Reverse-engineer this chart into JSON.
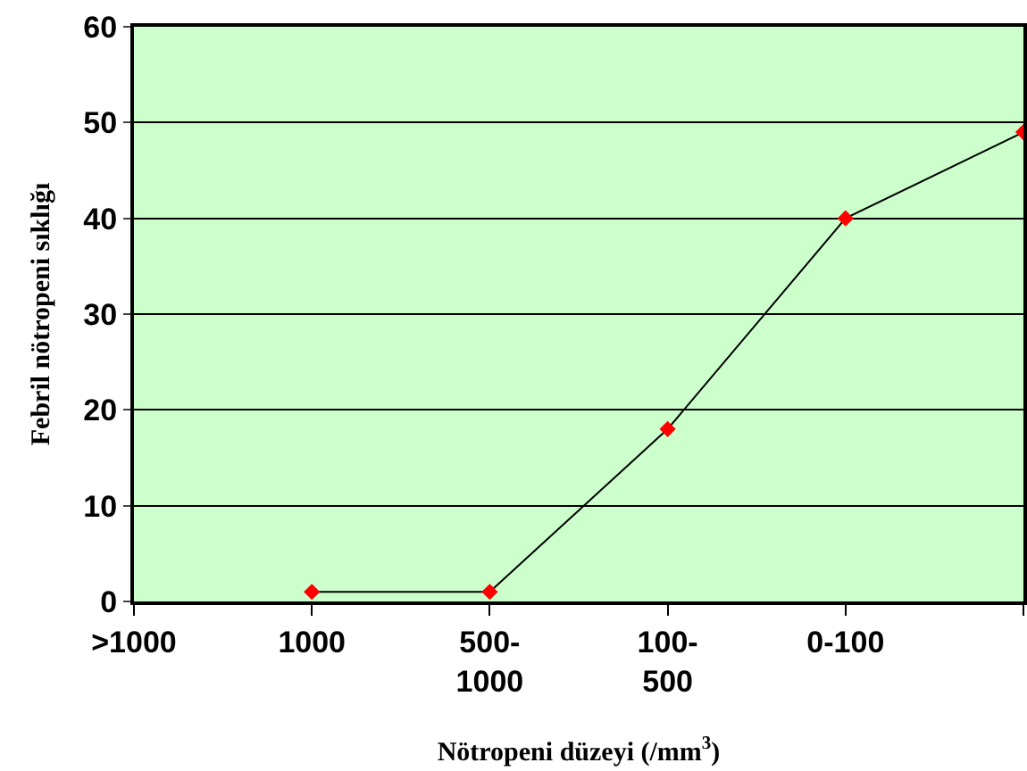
{
  "chart_data": {
    "type": "line",
    "categories": [
      ">1000",
      "1000",
      "500-\n1000",
      "100-\n500",
      "0-100",
      null
    ],
    "series": [
      {
        "color": "#000000",
        "colors": [
          null,
          "#ff0000",
          "#ff0000",
          "#ff0000",
          "#ff0000",
          "#ff0000"
        ],
        "values": [
          null,
          1,
          1,
          18,
          40,
          49
        ]
      }
    ],
    "xlabel": "Nötropeni düzeyi (/mm$^{3}$)",
    "ylabel": "Febril nötropeni sıklığı",
    "ylim": [
      0,
      60
    ],
    "yticks": [
      0,
      10,
      20,
      30,
      40,
      50,
      60
    ],
    "grid": "y",
    "legend": false,
    "marker": "diamond",
    "line_style": "solid"
  }
}
